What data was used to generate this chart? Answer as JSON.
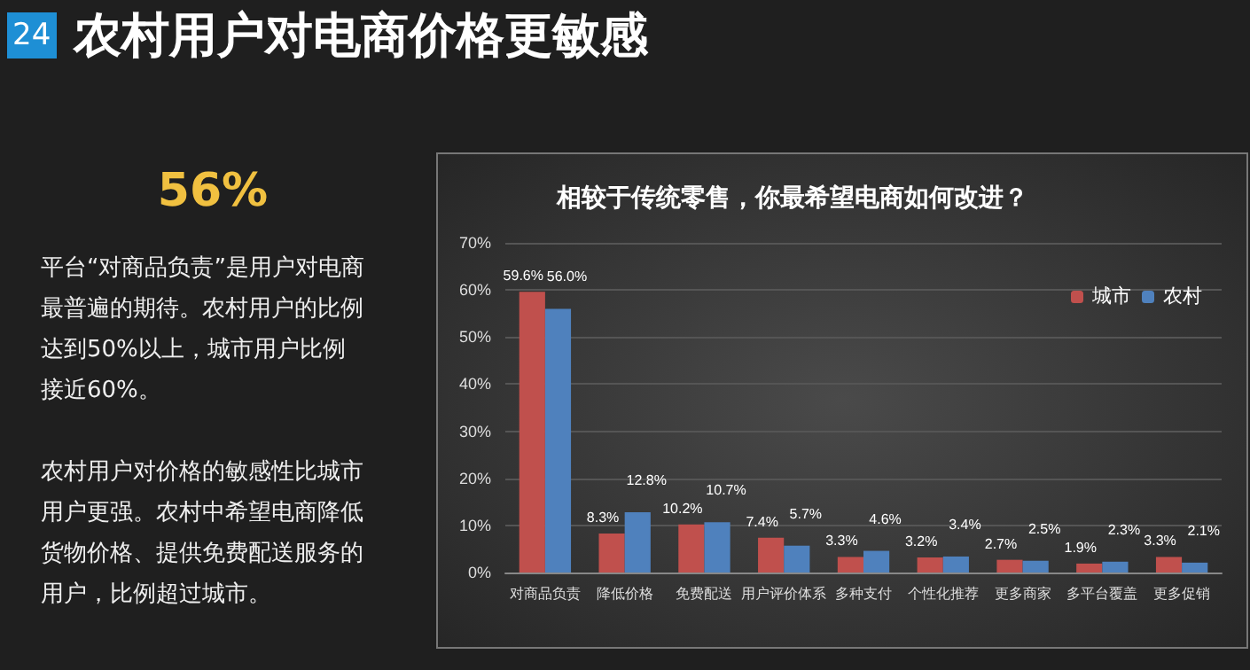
{
  "chart_data": {
    "type": "bar",
    "title": "农村用户对电商价格更敏感",
    "subtitle": "相较于传统零售，你最希望电商如何改进？",
    "annotations": [
      "24",
      "56%",
      "平台“对商品负责”是用户对电商最普遍的期待。农村用户的比例达到50%以上，城市用户比例接近60%。",
      "农村用户对价格的敏感性比城市用户更强。农村中希望电商降低货物价格、提供免费配送服务的用户，比例超过城市。"
    ],
    "categories": [
      "对商品负责",
      "降低价格",
      "免费配送",
      "用户评价体系",
      "多种支付",
      "个性化推荐",
      "更多商家",
      "多平台覆盖",
      "更多促销"
    ],
    "series": [
      {
        "name": "城市",
        "color": "#c0504d",
        "values": [
          59.6,
          8.3,
          10.2,
          7.4,
          3.3,
          3.2,
          2.7,
          1.9,
          3.3
        ],
        "value_labels": [
          "59.6%",
          "8.3%",
          "10.2%",
          "7.4%",
          "3.3%",
          "3.2%",
          "2.7%",
          "1.9%",
          "3.3%"
        ]
      },
      {
        "name": "农村",
        "color": "#4f81bd",
        "values": [
          56.0,
          12.8,
          10.7,
          5.7,
          4.6,
          3.4,
          2.5,
          2.3,
          2.1
        ],
        "value_labels": [
          "56.0%",
          "12.8%",
          "10.7%",
          "5.7%",
          "4.6%",
          "3.4%",
          "2.5%",
          "2.3%",
          "2.1%"
        ]
      }
    ],
    "ylim": [
      0,
      70
    ],
    "yticks": [
      {
        "value": 0,
        "label": "0%"
      },
      {
        "value": 10,
        "label": "10%"
      },
      {
        "value": 20,
        "label": "20%"
      },
      {
        "value": 30,
        "label": "30%"
      },
      {
        "value": 40,
        "label": "40%"
      },
      {
        "value": 50,
        "label": "50%"
      },
      {
        "value": 60,
        "label": "60%"
      },
      {
        "value": 70,
        "label": "70%"
      }
    ],
    "grid": "y",
    "legend": "top right"
  }
}
